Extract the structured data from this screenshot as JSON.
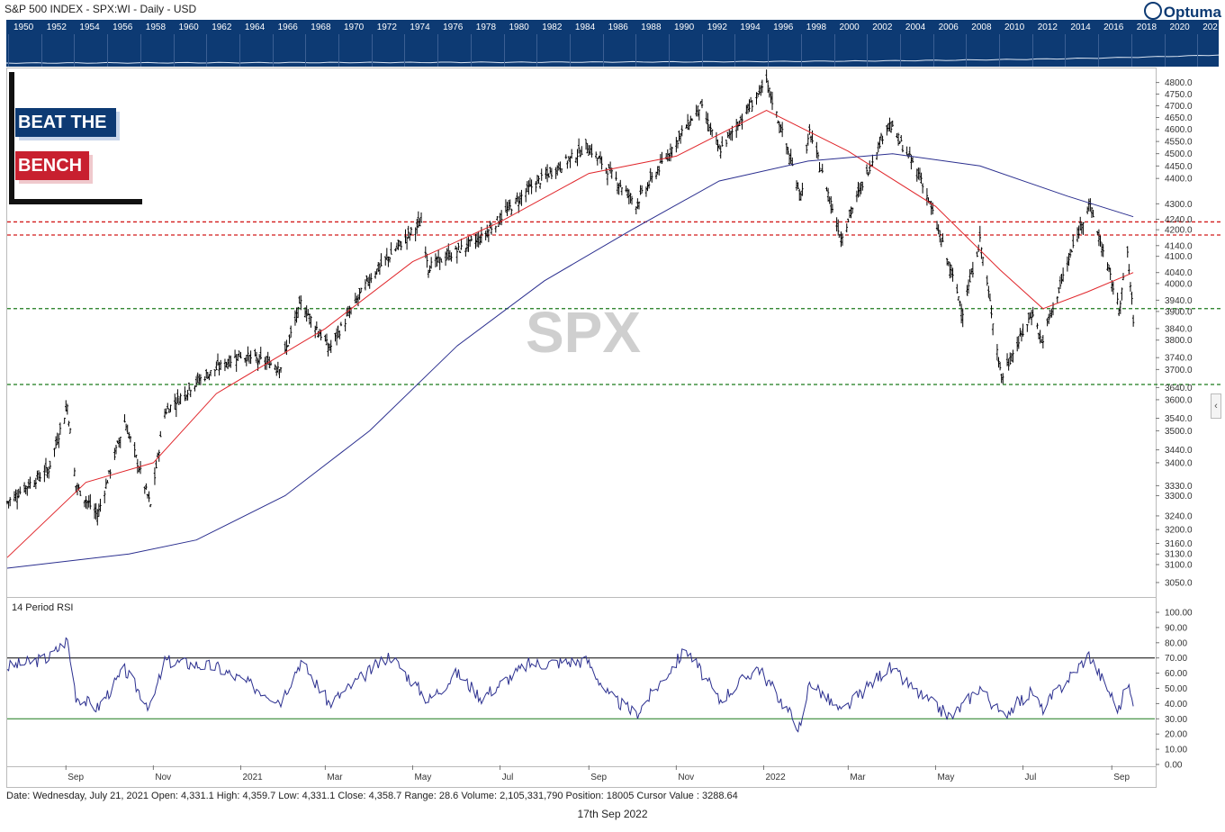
{
  "header": {
    "title": "S&P 500 INDEX - SPX:WI - Daily - USD",
    "logo_text": "Optuma"
  },
  "navigator": {
    "years": [
      "1950",
      "1952",
      "1954",
      "1956",
      "1958",
      "1960",
      "1962",
      "1964",
      "1966",
      "1968",
      "1970",
      "1972",
      "1974",
      "1976",
      "1978",
      "1980",
      "1982",
      "1984",
      "1986",
      "1988",
      "1990",
      "1992",
      "1994",
      "1996",
      "1998",
      "2000",
      "2002",
      "2004",
      "2006",
      "2008",
      "2010",
      "2012",
      "2014",
      "2016",
      "2018",
      "2020",
      "202"
    ]
  },
  "brand": {
    "line1": "BEAT THE",
    "line2": "BENCH"
  },
  "watermark": "SPX",
  "rsi_label": "14 Period RSI",
  "status_text": "Date: Wednesday, July 21, 2021 Open: 4,331.1 High: 4,359.7 Low: 4,331.1 Close: 4,358.7 Range: 28.6 Volume: 2,105,331,790 Position: 18005 Cursor Value : 3288.64",
  "footer_date": "17th Sep 2022",
  "colors": {
    "navbar": "#0d3a73",
    "ma_short": "#e0262b",
    "ma_long": "#2b2f8f",
    "rsi_line": "#2b2f8f",
    "level_red": "#d21b1b",
    "level_green": "#1b7a1b",
    "brand_blue": "#0d3a73",
    "brand_red": "#c8202f"
  },
  "chart_data": [
    {
      "type": "candlestick",
      "title": "S&P 500 INDEX - SPX:WI - Daily - USD",
      "x_ticks": [
        "Sep",
        "Nov",
        "2021",
        "Mar",
        "May",
        "Jul",
        "Sep",
        "Nov",
        "2022",
        "Mar",
        "May",
        "Jul",
        "Sep"
      ],
      "y_ticks": [
        "4800.0",
        "4750.0",
        "4700.0",
        "4650.0",
        "4600.0",
        "4550.0",
        "4500.0",
        "4450.0",
        "4400.0",
        "4300.0",
        "4240.0",
        "4200.0",
        "4140.0",
        "4100.0",
        "4040.0",
        "4000.0",
        "3940.0",
        "3900.0",
        "3840.0",
        "3800.0",
        "3740.0",
        "3700.0",
        "3640.0",
        "3600.0",
        "3540.0",
        "3500.0",
        "3440.0",
        "3400.0",
        "3330.0",
        "3300.0",
        "3240.0",
        "3200.0",
        "3160.0",
        "3130.0",
        "3100.0",
        "3050.0"
      ],
      "y_range": [
        3030,
        4830
      ],
      "scale": "log",
      "close": [
        {
          "date": "2020-07-22",
          "value": 3280
        },
        {
          "date": "2020-08-05",
          "value": 3330
        },
        {
          "date": "2020-08-20",
          "value": 3380
        },
        {
          "date": "2020-09-02",
          "value": 3580
        },
        {
          "date": "2020-09-08",
          "value": 3330
        },
        {
          "date": "2020-09-23",
          "value": 3240
        },
        {
          "date": "2020-10-12",
          "value": 3530
        },
        {
          "date": "2020-10-30",
          "value": 3270
        },
        {
          "date": "2020-11-09",
          "value": 3560
        },
        {
          "date": "2020-12-01",
          "value": 3660
        },
        {
          "date": "2020-12-31",
          "value": 3750
        },
        {
          "date": "2021-01-29",
          "value": 3710
        },
        {
          "date": "2021-02-12",
          "value": 3930
        },
        {
          "date": "2021-03-04",
          "value": 3770
        },
        {
          "date": "2021-04-01",
          "value": 4020
        },
        {
          "date": "2021-05-07",
          "value": 4230
        },
        {
          "date": "2021-05-12",
          "value": 4060
        },
        {
          "date": "2021-06-18",
          "value": 4170
        },
        {
          "date": "2021-07-21",
          "value": 4359
        },
        {
          "date": "2021-08-31",
          "value": 4530
        },
        {
          "date": "2021-10-04",
          "value": 4300
        },
        {
          "date": "2021-11-18",
          "value": 4700
        },
        {
          "date": "2021-12-01",
          "value": 4510
        },
        {
          "date": "2022-01-03",
          "value": 4800
        },
        {
          "date": "2022-01-27",
          "value": 4330
        },
        {
          "date": "2022-02-02",
          "value": 4590
        },
        {
          "date": "2022-02-24",
          "value": 4170
        },
        {
          "date": "2022-03-29",
          "value": 4630
        },
        {
          "date": "2022-04-21",
          "value": 4400
        },
        {
          "date": "2022-05-20",
          "value": 3900
        },
        {
          "date": "2022-06-01",
          "value": 4160
        },
        {
          "date": "2022-06-16",
          "value": 3670
        },
        {
          "date": "2022-07-08",
          "value": 3900
        },
        {
          "date": "2022-07-14",
          "value": 3790
        },
        {
          "date": "2022-08-16",
          "value": 4305
        },
        {
          "date": "2022-09-06",
          "value": 3910
        },
        {
          "date": "2022-09-12",
          "value": 4110
        },
        {
          "date": "2022-09-16",
          "value": 3873
        }
      ],
      "moving_averages": [
        {
          "name": "short MA",
          "points": [
            {
              "date": "2020-07-22",
              "value": 3120
            },
            {
              "date": "2020-09-15",
              "value": 3340
            },
            {
              "date": "2020-11-01",
              "value": 3400
            },
            {
              "date": "2020-12-15",
              "value": 3620
            },
            {
              "date": "2021-03-01",
              "value": 3840
            },
            {
              "date": "2021-05-01",
              "value": 4080
            },
            {
              "date": "2021-07-01",
              "value": 4230
            },
            {
              "date": "2021-09-01",
              "value": 4420
            },
            {
              "date": "2021-11-01",
              "value": 4490
            },
            {
              "date": "2022-01-03",
              "value": 4680
            },
            {
              "date": "2022-03-01",
              "value": 4510
            },
            {
              "date": "2022-05-01",
              "value": 4290
            },
            {
              "date": "2022-06-15",
              "value": 4050
            },
            {
              "date": "2022-07-15",
              "value": 3910
            },
            {
              "date": "2022-08-15",
              "value": 3970
            },
            {
              "date": "2022-09-16",
              "value": 4040
            }
          ]
        },
        {
          "name": "long MA",
          "points": [
            {
              "date": "2020-07-22",
              "value": 3090
            },
            {
              "date": "2020-10-15",
              "value": 3130
            },
            {
              "date": "2020-12-01",
              "value": 3170
            },
            {
              "date": "2021-02-01",
              "value": 3300
            },
            {
              "date": "2021-04-01",
              "value": 3500
            },
            {
              "date": "2021-06-01",
              "value": 3780
            },
            {
              "date": "2021-08-01",
              "value": 4010
            },
            {
              "date": "2021-10-01",
              "value": 4200
            },
            {
              "date": "2021-12-01",
              "value": 4390
            },
            {
              "date": "2022-02-01",
              "value": 4470
            },
            {
              "date": "2022-04-01",
              "value": 4500
            },
            {
              "date": "2022-06-01",
              "value": 4450
            },
            {
              "date": "2022-08-01",
              "value": 4330
            },
            {
              "date": "2022-09-16",
              "value": 4250
            }
          ]
        }
      ],
      "horizontal_levels": [
        {
          "value": 4230,
          "style": "dashed",
          "color": "red"
        },
        {
          "value": 4180,
          "style": "dashed",
          "color": "red"
        },
        {
          "value": 3910,
          "style": "dashed",
          "color": "green"
        },
        {
          "value": 3650,
          "style": "dashed",
          "color": "green"
        }
      ],
      "grid": false
    },
    {
      "type": "line",
      "title": "14 Period RSI",
      "y_ticks": [
        "100.00",
        "90.00",
        "80.00",
        "70.00",
        "60.00",
        "50.00",
        "40.00",
        "30.00",
        "20.00",
        "10.00",
        "0.00"
      ],
      "y_range": [
        0,
        100
      ],
      "overbought": 70,
      "oversold": 30,
      "series": [
        {
          "points": [
            {
              "date": "2020-07-22",
              "value": 64
            },
            {
              "date": "2020-08-20",
              "value": 70
            },
            {
              "date": "2020-09-02",
              "value": 82
            },
            {
              "date": "2020-09-08",
              "value": 45
            },
            {
              "date": "2020-09-23",
              "value": 37
            },
            {
              "date": "2020-10-12",
              "value": 62
            },
            {
              "date": "2020-10-30",
              "value": 37
            },
            {
              "date": "2020-11-09",
              "value": 68
            },
            {
              "date": "2020-12-15",
              "value": 64
            },
            {
              "date": "2021-01-29",
              "value": 42
            },
            {
              "date": "2021-02-12",
              "value": 68
            },
            {
              "date": "2021-03-04",
              "value": 40
            },
            {
              "date": "2021-04-15",
              "value": 72
            },
            {
              "date": "2021-05-12",
              "value": 42
            },
            {
              "date": "2021-06-01",
              "value": 60
            },
            {
              "date": "2021-06-18",
              "value": 44
            },
            {
              "date": "2021-07-21",
              "value": 66
            },
            {
              "date": "2021-08-31",
              "value": 68
            },
            {
              "date": "2021-09-15",
              "value": 45
            },
            {
              "date": "2021-10-04",
              "value": 33
            },
            {
              "date": "2021-11-08",
              "value": 76
            },
            {
              "date": "2021-12-01",
              "value": 42
            },
            {
              "date": "2021-12-28",
              "value": 64
            },
            {
              "date": "2022-01-27",
              "value": 23
            },
            {
              "date": "2022-02-02",
              "value": 55
            },
            {
              "date": "2022-02-24",
              "value": 34
            },
            {
              "date": "2022-03-29",
              "value": 64
            },
            {
              "date": "2022-04-21",
              "value": 45
            },
            {
              "date": "2022-05-12",
              "value": 31
            },
            {
              "date": "2022-06-01",
              "value": 51
            },
            {
              "date": "2022-06-16",
              "value": 32
            },
            {
              "date": "2022-07-08",
              "value": 48
            },
            {
              "date": "2022-07-14",
              "value": 36
            },
            {
              "date": "2022-08-16",
              "value": 72
            },
            {
              "date": "2022-09-06",
              "value": 36
            },
            {
              "date": "2022-09-12",
              "value": 54
            },
            {
              "date": "2022-09-16",
              "value": 38
            }
          ]
        }
      ]
    }
  ]
}
